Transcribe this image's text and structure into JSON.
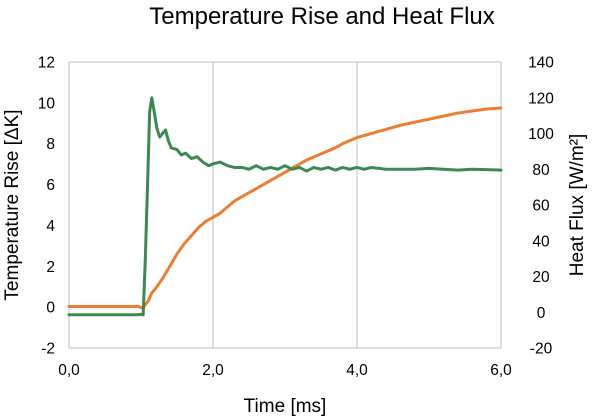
{
  "chart_data": {
    "type": "line",
    "title": "Temperature Rise and Heat Flux",
    "xlabel": "Time [ms]",
    "ylabel": "Temperature Rise [ΔK]",
    "y2label": "Heat Flux [W/m²]",
    "xlim": [
      0,
      6
    ],
    "ylim": [
      -2,
      12
    ],
    "y2lim": [
      -20,
      140
    ],
    "xticks": [
      0,
      2,
      4,
      6
    ],
    "xtick_labels": [
      "0,0",
      "2,0",
      "4,0",
      "6,0"
    ],
    "yticks": [
      -2,
      0,
      2,
      4,
      6,
      8,
      10,
      12
    ],
    "ytick_labels": [
      "-2",
      "0",
      "2",
      "4",
      "6",
      "8",
      "10",
      "12"
    ],
    "y2ticks": [
      -20,
      0,
      20,
      40,
      60,
      80,
      100,
      120,
      140
    ],
    "y2tick_labels": [
      "-20",
      "0",
      "20",
      "40",
      "60",
      "80",
      "100",
      "120",
      "140"
    ],
    "grid": "vertical",
    "legend": "none",
    "series": [
      {
        "axis": "left",
        "color": "#ed7d31",
        "points": [
          [
            0,
            0.03
          ],
          [
            0.5,
            0.03
          ],
          [
            0.9,
            0.03
          ],
          [
            0.97,
            0.03
          ],
          [
            1.02,
            -0.05
          ],
          [
            1.1,
            0.3
          ],
          [
            1.15,
            0.7
          ],
          [
            1.2,
            0.9
          ],
          [
            1.3,
            1.4
          ],
          [
            1.4,
            2.0
          ],
          [
            1.5,
            2.6
          ],
          [
            1.6,
            3.1
          ],
          [
            1.7,
            3.5
          ],
          [
            1.8,
            3.9
          ],
          [
            1.9,
            4.2
          ],
          [
            2.0,
            4.4
          ],
          [
            2.1,
            4.6
          ],
          [
            2.2,
            4.9
          ],
          [
            2.3,
            5.2
          ],
          [
            2.4,
            5.4
          ],
          [
            2.5,
            5.6
          ],
          [
            2.6,
            5.8
          ],
          [
            2.7,
            6.0
          ],
          [
            2.8,
            6.2
          ],
          [
            2.9,
            6.4
          ],
          [
            3.0,
            6.6
          ],
          [
            3.1,
            6.8
          ],
          [
            3.2,
            7.0
          ],
          [
            3.3,
            7.2
          ],
          [
            3.4,
            7.35
          ],
          [
            3.5,
            7.5
          ],
          [
            3.6,
            7.65
          ],
          [
            3.7,
            7.8
          ],
          [
            3.8,
            8.0
          ],
          [
            3.9,
            8.15
          ],
          [
            4.0,
            8.3
          ],
          [
            4.2,
            8.5
          ],
          [
            4.4,
            8.7
          ],
          [
            4.6,
            8.9
          ],
          [
            4.8,
            9.05
          ],
          [
            5.0,
            9.2
          ],
          [
            5.2,
            9.35
          ],
          [
            5.4,
            9.5
          ],
          [
            5.6,
            9.6
          ],
          [
            5.8,
            9.7
          ],
          [
            6.0,
            9.75
          ]
        ]
      },
      {
        "axis": "right",
        "color": "#3a8a52",
        "points": [
          [
            0,
            -1.4
          ],
          [
            0.5,
            -1.4
          ],
          [
            0.9,
            -1.4
          ],
          [
            0.95,
            -1.4
          ],
          [
            1.0,
            -1.2
          ],
          [
            1.03,
            -1.5
          ],
          [
            1.06,
            30
          ],
          [
            1.09,
            70
          ],
          [
            1.12,
            112
          ],
          [
            1.15,
            120
          ],
          [
            1.18,
            113
          ],
          [
            1.22,
            103
          ],
          [
            1.26,
            98
          ],
          [
            1.3,
            100
          ],
          [
            1.34,
            102
          ],
          [
            1.38,
            96
          ],
          [
            1.42,
            92
          ],
          [
            1.5,
            91
          ],
          [
            1.56,
            88
          ],
          [
            1.62,
            89
          ],
          [
            1.7,
            86
          ],
          [
            1.78,
            87
          ],
          [
            1.86,
            84
          ],
          [
            1.94,
            82
          ],
          [
            2.0,
            83
          ],
          [
            2.1,
            84
          ],
          [
            2.2,
            82
          ],
          [
            2.3,
            81
          ],
          [
            2.4,
            81
          ],
          [
            2.5,
            80
          ],
          [
            2.6,
            82
          ],
          [
            2.7,
            80
          ],
          [
            2.8,
            81
          ],
          [
            2.9,
            80
          ],
          [
            3.0,
            82
          ],
          [
            3.1,
            80
          ],
          [
            3.2,
            81
          ],
          [
            3.3,
            79
          ],
          [
            3.4,
            81
          ],
          [
            3.5,
            80
          ],
          [
            3.6,
            81
          ],
          [
            3.7,
            79.5
          ],
          [
            3.8,
            81
          ],
          [
            3.9,
            80
          ],
          [
            4.0,
            81
          ],
          [
            4.1,
            80
          ],
          [
            4.2,
            81
          ],
          [
            4.4,
            80
          ],
          [
            4.6,
            80
          ],
          [
            4.8,
            80
          ],
          [
            5.0,
            80.5
          ],
          [
            5.2,
            80
          ],
          [
            5.4,
            79.5
          ],
          [
            5.6,
            80
          ],
          [
            5.8,
            79.8
          ],
          [
            6.0,
            79.5
          ]
        ]
      }
    ]
  }
}
